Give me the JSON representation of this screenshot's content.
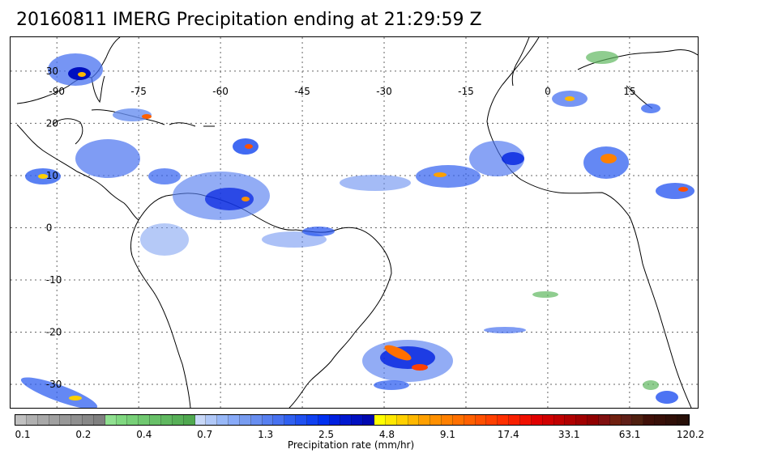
{
  "title": "20160811 IMERG Precipitation ending at 21:29:59 Z",
  "map": {
    "lon_labels": [
      "-90",
      "-75",
      "-60",
      "-45",
      "-30",
      "-15",
      "0",
      "15"
    ],
    "lat_labels": [
      "30",
      "20",
      "10",
      "0",
      "-10",
      "-20",
      "-30"
    ],
    "lon_values": [
      -90,
      -75,
      -60,
      -45,
      -30,
      -15,
      0,
      15
    ],
    "lat_values": [
      30,
      20,
      10,
      0,
      -10,
      -20,
      -30
    ],
    "gridline_style": "dotted",
    "background": "#ffffff"
  },
  "colorbar": {
    "label": "Precipitation rate (mm/hr)",
    "tick_labels": [
      "0.1",
      "0.2",
      "0.4",
      "0.7",
      "1.3",
      "2.5",
      "4.8",
      "9.1",
      "17.4",
      "33.1",
      "63.1",
      "120.2"
    ],
    "colors": [
      "#c0c0c0",
      "#b0b0b0",
      "#a8a8a8",
      "#a0a0a0",
      "#989898",
      "#909090",
      "#888888",
      "#808080",
      "#90e090",
      "#80d880",
      "#78d078",
      "#70c870",
      "#68c068",
      "#60b860",
      "#58b058",
      "#50a850",
      "#c8d8f8",
      "#b0c8f8",
      "#98b8f8",
      "#88aaf8",
      "#789cf0",
      "#688ef0",
      "#5880f0",
      "#4872f0",
      "#3060f0",
      "#2050f0",
      "#1040f0",
      "#0030f0",
      "#0020e0",
      "#0018d0",
      "#0010c0",
      "#0008b0",
      "#ffff00",
      "#ffe800",
      "#ffd000",
      "#ffb800",
      "#ffa000",
      "#ff9000",
      "#ff8000",
      "#ff7000",
      "#ff6000",
      "#ff5000",
      "#ff4000",
      "#ff3000",
      "#f82000",
      "#f01000",
      "#e00000",
      "#d00000",
      "#c00000",
      "#b00000",
      "#a00000",
      "#900000",
      "#801010",
      "#702010",
      "#602018",
      "#502010",
      "#401008",
      "#381008",
      "#301008",
      "#281008"
    ]
  }
}
